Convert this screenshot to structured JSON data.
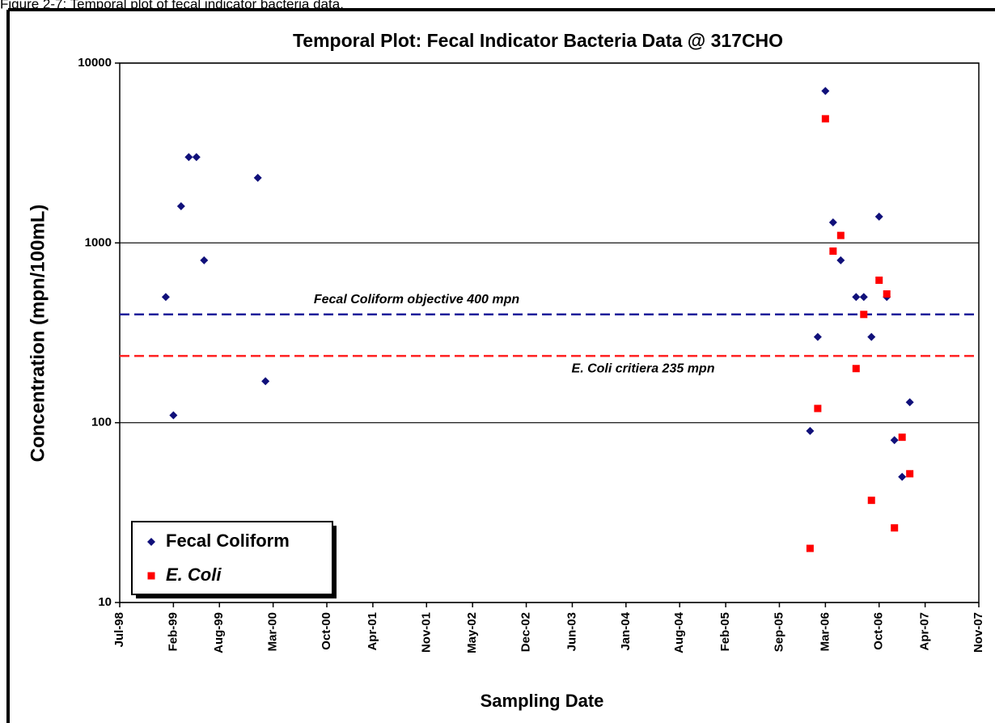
{
  "caption": "Figure 2-7: Temporal plot of fecal indicator bacteria data.",
  "chart_data": {
    "type": "scatter",
    "title": "Temporal Plot: Fecal Indicator Bacteria Data @ 317CHO",
    "x_label": "Sampling Date",
    "y_label": "Concentration (mpn/100mL)",
    "log_y": true,
    "grid": true,
    "legend": "lower left",
    "ylim": [
      10,
      10000
    ],
    "yticks": [
      10,
      100,
      1000,
      10000
    ],
    "xlim": [
      "1998-07",
      "2007-11"
    ],
    "xticks": [
      {
        "value": "1998-07",
        "label": "Jul-98"
      },
      {
        "value": "1999-02",
        "label": "Feb-99"
      },
      {
        "value": "1999-08",
        "label": "Aug-99"
      },
      {
        "value": "2000-03",
        "label": "Mar-00"
      },
      {
        "value": "2000-10",
        "label": "Oct-00"
      },
      {
        "value": "2001-04",
        "label": "Apr-01"
      },
      {
        "value": "2001-11",
        "label": "Nov-01"
      },
      {
        "value": "2002-05",
        "label": "May-02"
      },
      {
        "value": "2002-12",
        "label": "Dec-02"
      },
      {
        "value": "2003-06",
        "label": "Jun-03"
      },
      {
        "value": "2004-01",
        "label": "Jan-04"
      },
      {
        "value": "2004-08",
        "label": "Aug-04"
      },
      {
        "value": "2005-02",
        "label": "Feb-05"
      },
      {
        "value": "2005-09",
        "label": "Sep-05"
      },
      {
        "value": "2006-03",
        "label": "Mar-06"
      },
      {
        "value": "2006-10",
        "label": "Oct-06"
      },
      {
        "value": "2007-04",
        "label": "Apr-07"
      },
      {
        "value": "2007-11",
        "label": "Nov-07"
      }
    ],
    "reference_lines": [
      {
        "value": 400,
        "label": "Fecal Coliform objective 400 mpn",
        "color": "#1c1c9a"
      },
      {
        "value": 235,
        "label": "E. Coli critiera 235 mpn",
        "color": "#ff2020"
      }
    ],
    "series": [
      {
        "name": "Fecal Coliform",
        "color": "#10107a",
        "marker": "diamond",
        "x": [
          "1999-01",
          "1999-02",
          "1999-03",
          "1999-04",
          "1999-05",
          "1999-06",
          "2000-01",
          "2000-02",
          "2006-01",
          "2006-02",
          "2006-03",
          "2006-04",
          "2006-05",
          "2006-07",
          "2006-08",
          "2006-09",
          "2006-10",
          "2006-11",
          "2006-12",
          "2007-01",
          "2007-02"
        ],
        "values": [
          500,
          110,
          1600,
          3000,
          3000,
          800,
          2300,
          170,
          90,
          300,
          7000,
          1300,
          800,
          500,
          500,
          300,
          1400,
          500,
          80,
          50,
          130
        ]
      },
      {
        "name": "E. Coli",
        "color": "#ff0000",
        "marker": "square",
        "x": [
          "2006-01",
          "2006-02",
          "2006-03",
          "2006-04",
          "2006-05",
          "2006-07",
          "2006-08",
          "2006-09",
          "2006-10",
          "2006-11",
          "2006-12",
          "2007-01",
          "2007-02"
        ],
        "values": [
          20,
          120,
          4900,
          900,
          1100,
          200,
          400,
          37,
          620,
          520,
          26,
          83,
          52
        ]
      }
    ]
  }
}
